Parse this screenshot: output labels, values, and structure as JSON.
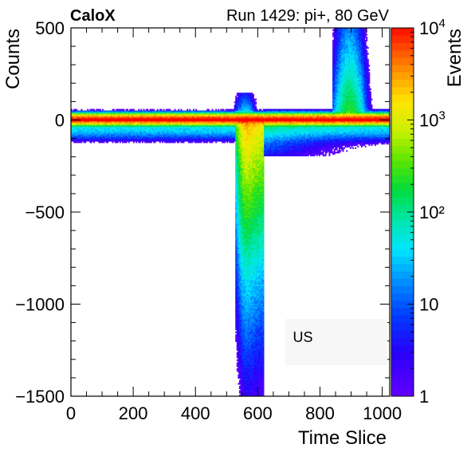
{
  "chart_data": {
    "type": "heatmap",
    "experiment_label": "CaloX",
    "run_label": "Run 1429: pi+, 80 GeV",
    "xlabel": "Time Slice",
    "ylabel": "Counts",
    "zlabel": "Events",
    "annotation": "US",
    "xlim": [
      0,
      1024
    ],
    "ylim": [
      -1500,
      500
    ],
    "zlim": [
      1,
      10000
    ],
    "z_scale": "log",
    "x_ticks": [
      "0",
      "200",
      "400",
      "600",
      "800",
      "1000"
    ],
    "x_tick_values": [
      0,
      200,
      400,
      600,
      800,
      1000
    ],
    "y_ticks": [
      "500",
      "0",
      "−500",
      "−1000",
      "−1500"
    ],
    "y_tick_values": [
      500,
      0,
      -500,
      -1000,
      -1500
    ],
    "z_ticks": [
      {
        "base": "10",
        "exp": "4",
        "value": 10000
      },
      {
        "base": "10",
        "exp": "3",
        "value": 1000
      },
      {
        "base": "10",
        "exp": "",
        "value": 100,
        "label": "10²"
      },
      {
        "base": "10",
        "exp": "",
        "value": 10
      },
      {
        "base": "1",
        "exp": "",
        "value": 1
      }
    ],
    "baseline": {
      "y": 0,
      "color": "#ff0000"
    },
    "features": [
      {
        "name": "pedestal band",
        "x": [
          0,
          1024
        ],
        "y_center": 0,
        "y_halfwidth": 15,
        "peak_events": 10000
      },
      {
        "name": "negative pulse",
        "x_center": 565,
        "x_width": 70,
        "y_min": -1500,
        "y_max": 0
      },
      {
        "name": "positive bump",
        "x_center": 900,
        "x_width": 60,
        "y_max": 500
      }
    ],
    "colors": {
      "baseline": "#ff0000",
      "frame": "#000000"
    }
  }
}
